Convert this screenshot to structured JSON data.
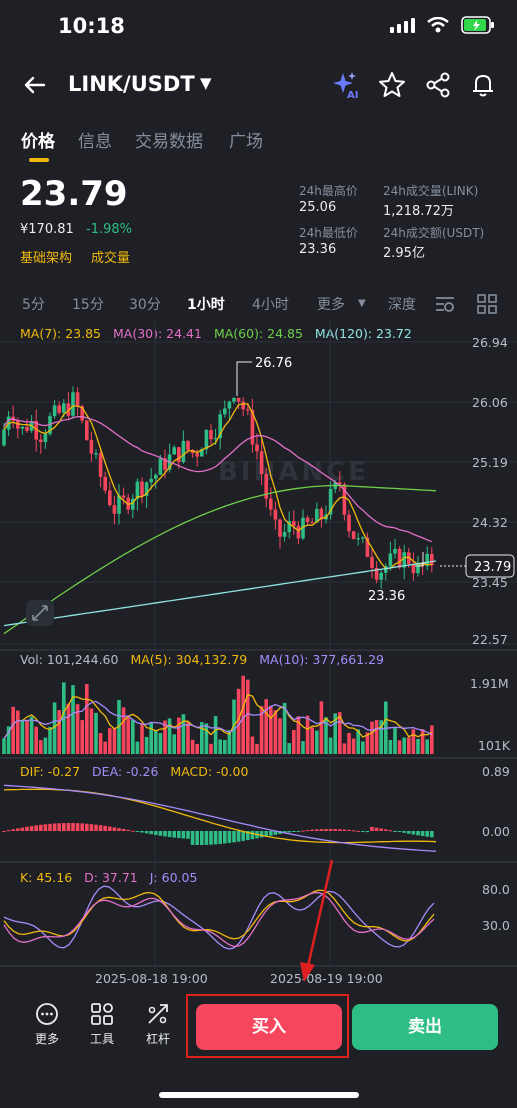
{
  "status": {
    "time": "10:18"
  },
  "header": {
    "pair": "LINK/USDT"
  },
  "tabs": [
    "价格",
    "信息",
    "交易数据",
    "广场"
  ],
  "price": {
    "last": "23.79",
    "cny": "¥170.81",
    "change": "-1.98%",
    "tags": [
      "基础架构",
      "成交量"
    ]
  },
  "stats": {
    "high_label": "24h最高价",
    "high": "25.06",
    "low_label": "24h最低价",
    "low": "23.36",
    "vol_label": "24h成交量(LINK)",
    "vol": "1,218.72万",
    "amt_label": "24h成交额(USDT)",
    "amt": "2.95亿"
  },
  "intervals": [
    "5分",
    "15分",
    "30分",
    "1小时",
    "4小时",
    "更多",
    "深度"
  ],
  "active_interval": "1小时",
  "ma_legend": {
    "ma7": "MA(7): 23.85",
    "ma30": "MA(30): 24.41",
    "ma60": "MA(60): 24.85",
    "ma120": "MA(120): 23.72"
  },
  "price_axis": [
    "26.94",
    "26.06",
    "25.19",
    "24.32",
    "23.45",
    "22.57"
  ],
  "price_tag": "23.79",
  "annotations": {
    "high": "26.76",
    "low": "23.36"
  },
  "watermark": "BINANCE",
  "vol_legend": {
    "vol": "Vol: 101,244.60",
    "ma5": "MA(5): 304,132.79",
    "ma10": "MA(10): 377,661.29"
  },
  "vol_axis": [
    "1.91M",
    "101K"
  ],
  "macd_legend": {
    "dif": "DIF: -0.27",
    "dea": "DEA: -0.26",
    "macd": "MACD: -0.00"
  },
  "macd_axis": [
    "0.89",
    "0.00"
  ],
  "kdj_legend": {
    "k": "K: 45.16",
    "d": "D: 37.71",
    "j": "J: 60.05"
  },
  "kdj_axis": [
    "80.0",
    "30.0"
  ],
  "time_axis": [
    "2025-08-18 19:00",
    "2025-08-19 19:00"
  ],
  "bottom": {
    "more": "更多",
    "tools": "工具",
    "leverage": "杠杆",
    "buy": "买入",
    "sell": "卖出"
  },
  "colors": {
    "up": "#2ebd85",
    "down": "#f6465d",
    "accent": "#f0b90b",
    "ma7": "#f0b90b",
    "ma30": "#e36fc7",
    "ma60": "#6fcf4a",
    "ma120": "#8fe3e0",
    "highlight": "#e02020"
  }
}
